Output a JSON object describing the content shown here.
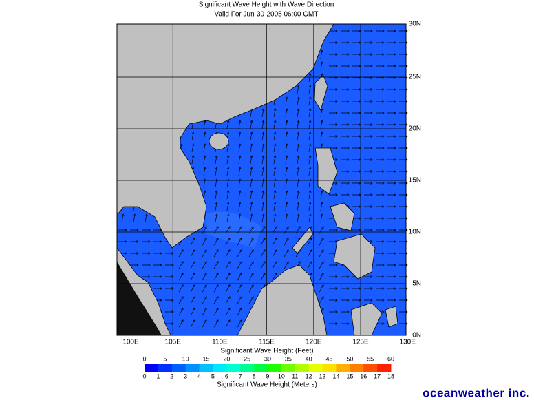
{
  "header": {
    "title": "Significant Wave Height with Wave Direction",
    "subtitle": "Valid For Jun-30-2005 06:00 GMT"
  },
  "map": {
    "lat_labels": [
      "30N",
      "25N",
      "20N",
      "15N",
      "10N",
      "5N",
      "0N"
    ],
    "lon_labels": [
      "100E",
      "105E",
      "110E",
      "115E",
      "120E",
      "125E",
      "130E"
    ]
  },
  "colorbar": {
    "feet_labels": [
      "0",
      "5",
      "10",
      "15",
      "20",
      "25",
      "30",
      "35",
      "40",
      "45",
      "50",
      "55",
      "60"
    ],
    "feet_title": "Significant Wave Height (Feet)",
    "meter_labels": [
      "0",
      "1",
      "2",
      "3",
      "4",
      "5",
      "6",
      "7",
      "8",
      "9",
      "10",
      "11",
      "12",
      "13",
      "14",
      "15",
      "16",
      "17",
      "18"
    ],
    "meter_title": "Significant Wave Height (Meters)",
    "colors": [
      "#0000ff",
      "#0030ff",
      "#0060ff",
      "#0090ff",
      "#00c0ff",
      "#00e8ff",
      "#00ffd0",
      "#00ff90",
      "#00ff40",
      "#20ff00",
      "#70ff00",
      "#b0ff00",
      "#e8ff00",
      "#ffe000",
      "#ffb000",
      "#ff8000",
      "#ff5000",
      "#ff2000"
    ]
  },
  "logo": "oceanweather inc."
}
